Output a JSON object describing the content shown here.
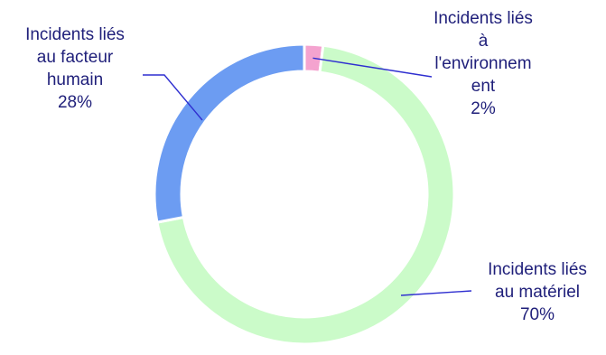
{
  "chart_data": {
    "type": "pie",
    "variant": "donut",
    "slices": [
      {
        "name": "Incidents liés à l'environnement",
        "value": 2,
        "color": "#f4a3cf",
        "label_lines": [
          "Incidents liés",
          "à",
          "l'environnem",
          "ent",
          "2%"
        ]
      },
      {
        "name": "Incidents liés au matériel",
        "value": 70,
        "color": "#cbfbc9",
        "label_lines": [
          "Incidents liés",
          "au matériel",
          "70%"
        ]
      },
      {
        "name": "Incidents liés au facteur humain",
        "value": 28,
        "color": "#6c9cf2",
        "label_lines": [
          "Incidents liés",
          "au facteur",
          "humain",
          "28%"
        ]
      }
    ],
    "leader_color": "#2f2fd0",
    "label_color": "#1f1f7a"
  }
}
